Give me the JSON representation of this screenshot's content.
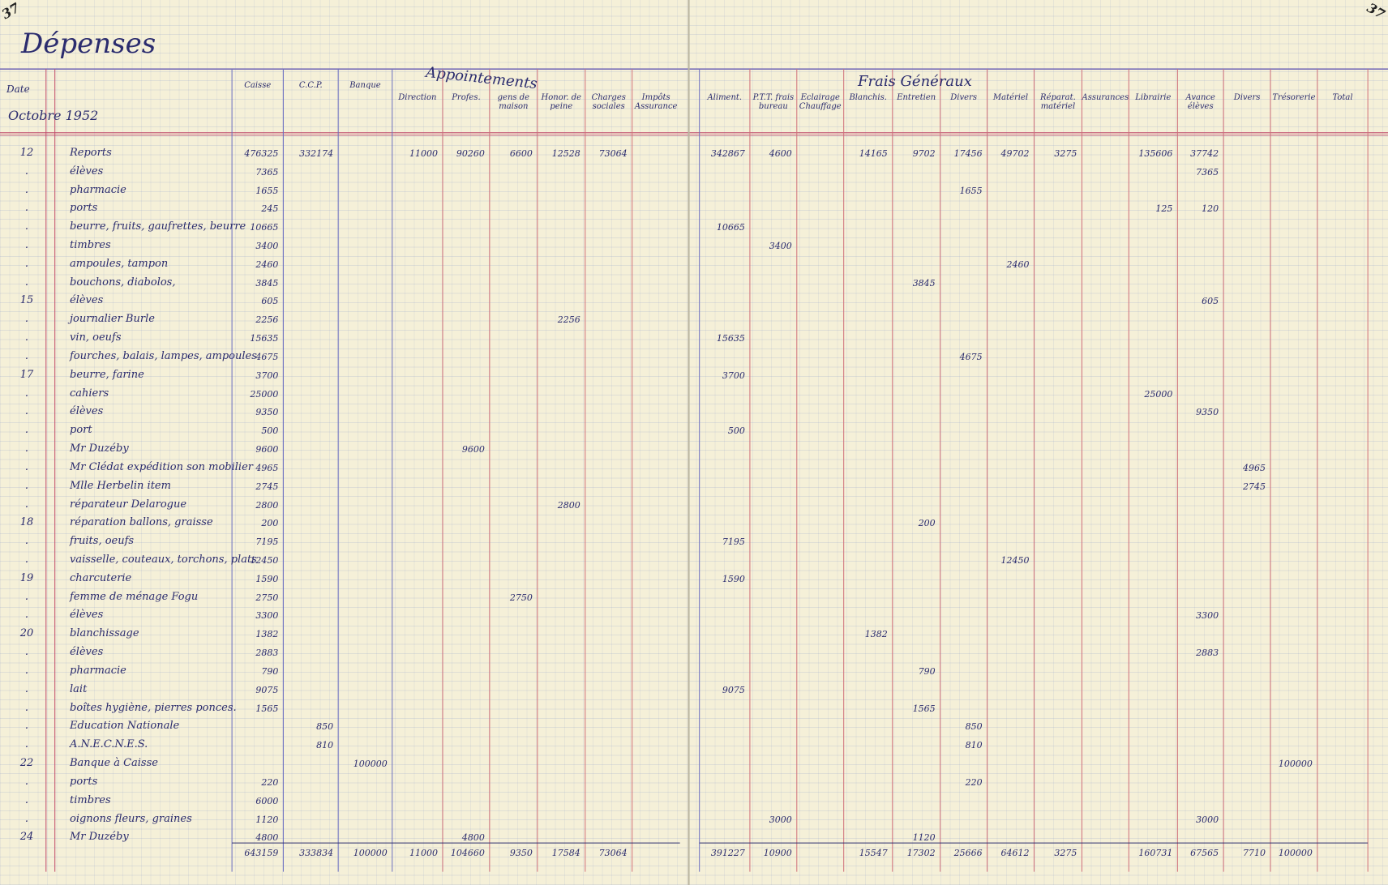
{
  "header": {
    "page_left": "37",
    "page_right": "37",
    "title": "Dépenses",
    "date_label": "Date",
    "month": "Octobre 1952",
    "group_1": "Appointements",
    "group_2": "Frais Généraux"
  },
  "columns": [
    {
      "key": "caisse",
      "label": "Caisse"
    },
    {
      "key": "ccp",
      "label": "C.C.P."
    },
    {
      "key": "banque",
      "label": "Banque"
    },
    {
      "key": "direction",
      "label": "Direction"
    },
    {
      "key": "profes",
      "label": "Profes."
    },
    {
      "key": "gens",
      "label": "gens de maison"
    },
    {
      "key": "honor",
      "label": "Honor. de peine"
    },
    {
      "key": "charges",
      "label": "Charges sociales"
    },
    {
      "key": "impots",
      "label": "Impôts Assurance"
    },
    {
      "key": "aliment",
      "label": "Aliment."
    },
    {
      "key": "ptt",
      "label": "P.T.T. frais bureau"
    },
    {
      "key": "eclairage",
      "label": "Eclairage Chauffage"
    },
    {
      "key": "blanchis",
      "label": "Blanchis."
    },
    {
      "key": "entretien",
      "label": "Entretien"
    },
    {
      "key": "divers",
      "label": "Divers"
    },
    {
      "key": "materiel",
      "label": "Matériel"
    },
    {
      "key": "reparat",
      "label": "Réparat. matériel"
    },
    {
      "key": "assurances",
      "label": "Assurances"
    },
    {
      "key": "librairie",
      "label": "Librairie"
    },
    {
      "key": "eleves",
      "label": "Avance élèves"
    },
    {
      "key": "divers2",
      "label": "Divers"
    },
    {
      "key": "tresorerie",
      "label": "Trésorerie"
    },
    {
      "key": "total",
      "label": "Total"
    }
  ],
  "rows": [
    {
      "date": "12",
      "label": "Reports",
      "cells": {
        "caisse": 476325,
        "ccp": 332174,
        "direction": 11000,
        "profes": 90260,
        "gens": 6600,
        "honor": 12528,
        "charges": 73064,
        "aliment": 342867,
        "ptt": 4600,
        "blanchis": 14165,
        "entretien": 9702,
        "divers": 17456,
        "materiel": 49702,
        "reparat": 3275,
        "librairie": 135606,
        "eleves": 37742
      }
    },
    {
      "date": ".",
      "label": "élèves",
      "cells": {
        "caisse": 7365,
        "eleves": 7365
      }
    },
    {
      "date": ".",
      "label": "pharmacie",
      "cells": {
        "caisse": 1655,
        "divers": 1655
      }
    },
    {
      "date": ".",
      "label": "ports",
      "cells": {
        "caisse": 245,
        "librairie": 125,
        "eleves": 120
      }
    },
    {
      "date": ".",
      "label": "beurre, fruits, gaufrettes, beurre",
      "cells": {
        "caisse": 10665,
        "aliment": 10665
      }
    },
    {
      "date": ".",
      "label": "timbres",
      "cells": {
        "caisse": 3400,
        "ptt": 3400
      }
    },
    {
      "date": ".",
      "label": "ampoules, tampon",
      "cells": {
        "caisse": 2460,
        "materiel": 2460
      }
    },
    {
      "date": ".",
      "label": "bouchons, diabolos,",
      "cells": {
        "caisse": 3845,
        "entretien": 3845
      }
    },
    {
      "date": "15",
      "label": "élèves",
      "cells": {
        "caisse": 605,
        "eleves": 605
      }
    },
    {
      "date": ".",
      "label": "journalier Burle",
      "cells": {
        "caisse": 2256,
        "honor": 2256
      }
    },
    {
      "date": ".",
      "label": "vin, oeufs",
      "cells": {
        "caisse": 15635,
        "aliment": 15635
      }
    },
    {
      "date": ".",
      "label": "fourches, balais, lampes, ampoules",
      "cells": {
        "caisse": 4675,
        "divers": 4675
      }
    },
    {
      "date": "17",
      "label": "beurre, farine",
      "cells": {
        "caisse": 3700,
        "aliment": 3700
      }
    },
    {
      "date": ".",
      "label": "cahiers",
      "cells": {
        "caisse": 25000,
        "librairie": 25000
      }
    },
    {
      "date": ".",
      "label": "élèves",
      "cells": {
        "caisse": 9350,
        "eleves": 9350
      }
    },
    {
      "date": ".",
      "label": "port",
      "cells": {
        "caisse": 500,
        "aliment": 500
      }
    },
    {
      "date": ".",
      "label": "Mr Duzéby",
      "cells": {
        "caisse": 9600,
        "profes": 9600
      }
    },
    {
      "date": ".",
      "label": "Mr Clédat expédition son mobilier",
      "cells": {
        "caisse": 4965,
        "divers2": 4965
      }
    },
    {
      "date": ".",
      "label": "Mlle Herbelin item",
      "cells": {
        "caisse": 2745,
        "divers2": 2745
      }
    },
    {
      "date": ".",
      "label": "réparateur Delarogue",
      "cells": {
        "caisse": 2800,
        "honor": 2800
      }
    },
    {
      "date": "18",
      "label": "réparation ballons, graisse",
      "cells": {
        "caisse": 200,
        "entretien": 200
      }
    },
    {
      "date": ".",
      "label": "fruits, oeufs",
      "cells": {
        "caisse": 7195,
        "aliment": 7195
      }
    },
    {
      "date": ".",
      "label": "vaisselle, couteaux, torchons, plats",
      "cells": {
        "caisse": 12450,
        "materiel": 12450
      }
    },
    {
      "date": "19",
      "label": "charcuterie",
      "cells": {
        "caisse": 1590,
        "aliment": 1590
      }
    },
    {
      "date": ".",
      "label": "femme de ménage Fogu",
      "cells": {
        "caisse": 2750,
        "gens": 2750
      }
    },
    {
      "date": ".",
      "label": "élèves",
      "cells": {
        "caisse": 3300,
        "eleves": 3300
      }
    },
    {
      "date": "20",
      "label": "blanchissage",
      "cells": {
        "caisse": 1382,
        "blanchis": 1382
      }
    },
    {
      "date": ".",
      "label": "élèves",
      "cells": {
        "caisse": 2883,
        "eleves": 2883
      }
    },
    {
      "date": ".",
      "label": "pharmacie",
      "cells": {
        "caisse": 790,
        "entretien": 790
      }
    },
    {
      "date": ".",
      "label": "lait",
      "cells": {
        "caisse": 9075,
        "aliment": 9075
      }
    },
    {
      "date": ".",
      "label": "boîtes hygiène, pierres ponces.",
      "cells": {
        "caisse": 1565,
        "entretien": 1565
      }
    },
    {
      "date": ".",
      "label": "Education Nationale",
      "cells": {
        "ccp": 850,
        "divers": 850
      }
    },
    {
      "date": ".",
      "label": "A.N.E.C.N.E.S.",
      "cells": {
        "ccp": 810,
        "divers": 810
      }
    },
    {
      "date": "22",
      "label": "Banque à Caisse",
      "cells": {
        "banque": 100000,
        "tresorerie": 100000
      }
    },
    {
      "date": ".",
      "label": "ports",
      "cells": {
        "caisse": 220,
        "divers": 220
      }
    },
    {
      "date": ".",
      "label": "timbres",
      "cells": {
        "caisse": 6000
      }
    },
    {
      "date": ".",
      "label": "oignons fleurs, graines",
      "cells": {
        "caisse": 1120,
        "ptt": 3000,
        "eleves": 3000
      }
    },
    {
      "date": "24",
      "label": "Mr Duzéby",
      "cells": {
        "caisse": 4800,
        "profes": 4800,
        "entretien": 1120
      }
    }
  ],
  "totals": {
    "caisse": 643159,
    "ccp": 333834,
    "banque": 100000,
    "direction": 11000,
    "profes": 104660,
    "gens": 9350,
    "honor": 17584,
    "charges": 73064,
    "aliment": 391227,
    "ptt": 10900,
    "blanchis": 15547,
    "entretien": 17302,
    "divers": 25666,
    "materiel": 64612,
    "reparat": 3275,
    "librairie": 160731,
    "eleves": 67565,
    "divers2": 7710,
    "tresorerie": 100000
  }
}
